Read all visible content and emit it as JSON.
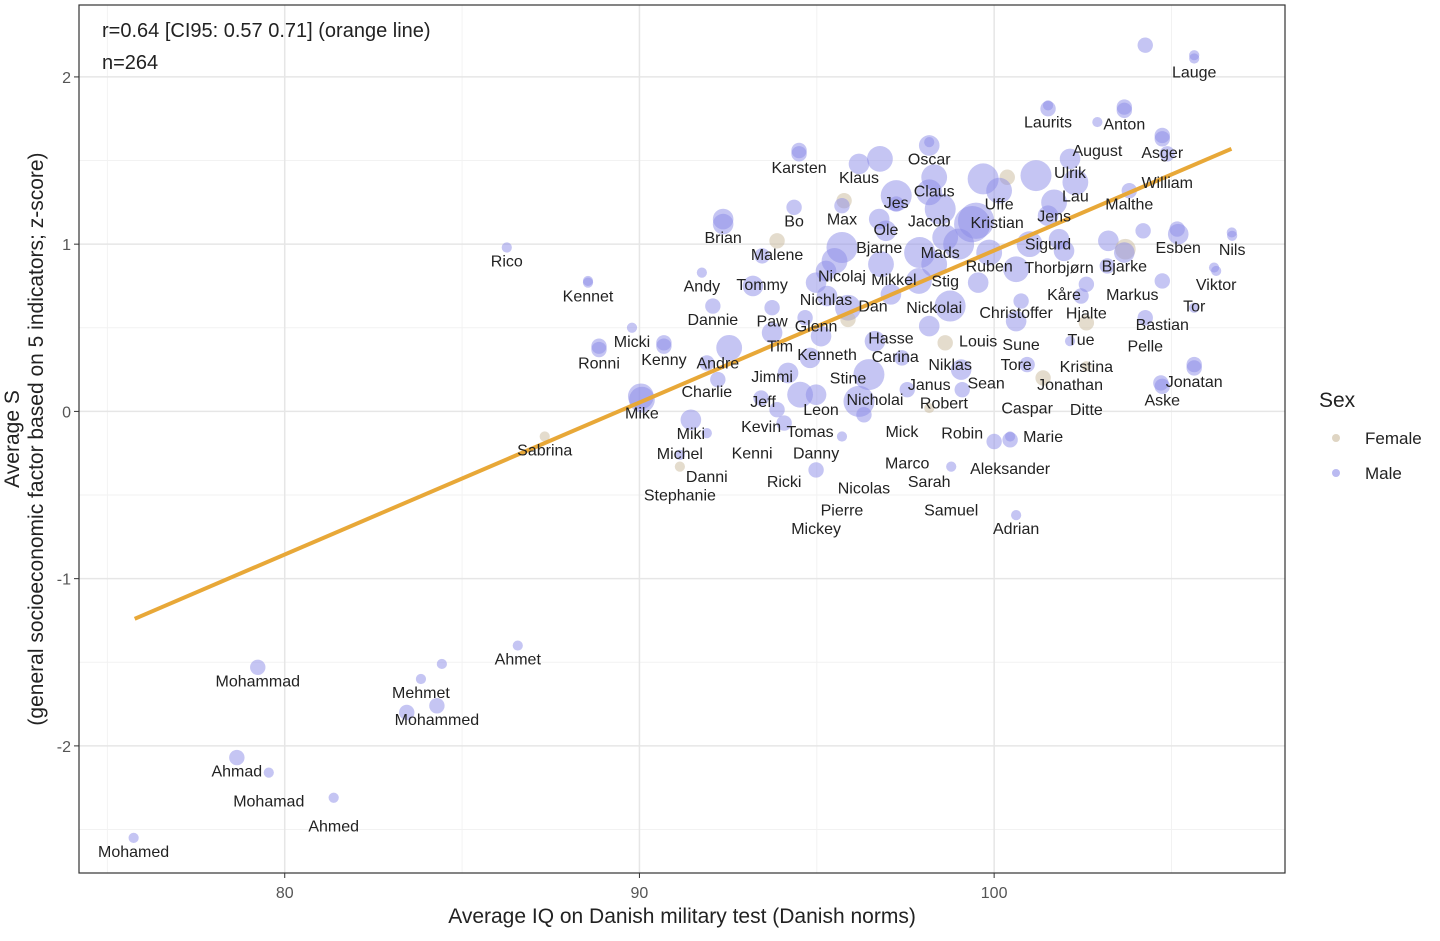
{
  "chart_data": {
    "type": "scatter",
    "xlabel": "Average IQ on Danish military test (Danish norms)",
    "ylabel": [
      "Average S",
      "(general socioeconomic factor based on 5 indicators; z-score)"
    ],
    "xlim": [
      74.2,
      108.2
    ],
    "ylim": [
      -2.76,
      2.43
    ],
    "x_ticks": [
      80,
      90,
      100
    ],
    "y_ticks": [
      -2,
      -1,
      0,
      1,
      2
    ],
    "grid": true,
    "annotations": [
      "r=0.64 [CI95: 0.57 0.71] (orange line)",
      "n=264"
    ],
    "regression_line": {
      "x": [
        75.77,
        106.69
      ],
      "y": [
        -1.24,
        1.57
      ],
      "color": "#e8a838"
    },
    "legend": {
      "title": "Sex",
      "position": "right",
      "entries": [
        {
          "label": "Female",
          "color": "#c9b99b"
        },
        {
          "label": "Male",
          "color": "#8c8ce8"
        }
      ]
    },
    "points": [
      {
        "name": "Lauge",
        "x": 105.64,
        "y": 2.11,
        "sex": "Male",
        "w": 1
      },
      {
        "name": "Laurits",
        "x": 101.52,
        "y": 1.81,
        "sex": "Male",
        "w": 2
      },
      {
        "name": "Anton",
        "x": 103.67,
        "y": 1.8,
        "sex": "Male",
        "w": 2
      },
      {
        "name": "August",
        "x": 102.91,
        "y": 1.73,
        "sex": "Male",
        "w": 1
      },
      {
        "name": "Asger",
        "x": 104.74,
        "y": 1.63,
        "sex": "Male",
        "w": 2
      },
      {
        "name": "William",
        "x": 104.88,
        "y": 1.54,
        "sex": "Male",
        "w": 2
      },
      {
        "name": "Ulrik",
        "x": 102.14,
        "y": 1.51,
        "sex": "Male",
        "w": 3
      },
      {
        "name": "Malthe",
        "x": 103.81,
        "y": 1.32,
        "sex": "Male",
        "w": 2
      },
      {
        "name": "Lau",
        "x": 102.29,
        "y": 1.37,
        "sex": "Male",
        "w": 4
      },
      {
        "name": "Jens",
        "x": 101.69,
        "y": 1.25,
        "sex": "Male",
        "w": 4
      },
      {
        "name": "Sigurd",
        "x": 101.52,
        "y": 1.17,
        "sex": "Male",
        "w": 3
      },
      {
        "name": "Oscar",
        "x": 98.17,
        "y": 1.59,
        "sex": "Male",
        "w": 3
      },
      {
        "name": "Karsten",
        "x": 94.5,
        "y": 1.54,
        "sex": "Male",
        "w": 2
      },
      {
        "name": "Klaus",
        "x": 96.19,
        "y": 1.48,
        "sex": "Male",
        "w": 3
      },
      {
        "name": "Claus",
        "x": 98.31,
        "y": 1.4,
        "sex": "Male",
        "w": 4
      },
      {
        "name": "Jacob",
        "x": 98.17,
        "y": 1.31,
        "sex": "Male",
        "w": 4
      },
      {
        "name": "Uffe",
        "x": 100.14,
        "y": 1.32,
        "sex": "Male",
        "w": 4
      },
      {
        "name": "Bo",
        "x": 94.36,
        "y": 1.22,
        "sex": "Male",
        "w": 2
      },
      {
        "name": "Max",
        "x": 95.71,
        "y": 1.23,
        "sex": "Male",
        "w": 2
      },
      {
        "name": "Jes",
        "x": 97.24,
        "y": 1.24,
        "sex": "Male",
        "w": 2
      },
      {
        "name": "Mads",
        "x": 98.48,
        "y": 1.21,
        "sex": "Male",
        "w": 5
      },
      {
        "name": "Bjarne",
        "x": 96.76,
        "y": 1.15,
        "sex": "Male",
        "w": 3
      },
      {
        "name": "Kristian",
        "x": 99.38,
        "y": 1.12,
        "sex": "Male",
        "w": 6
      },
      {
        "name": "Brian",
        "x": 92.36,
        "y": 1.12,
        "sex": "Male",
        "w": 3
      },
      {
        "name": "Ole",
        "x": 96.95,
        "y": 1.08,
        "sex": "Male",
        "w": 3
      },
      {
        "name": "Stig",
        "x": 98.62,
        "y": 1.04,
        "sex": "Male",
        "w": 4
      },
      {
        "name": "Thorbjørn",
        "x": 101.83,
        "y": 1.03,
        "sex": "Male",
        "w": 3
      },
      {
        "name": "Esben",
        "x": 105.19,
        "y": 1.06,
        "sex": "Male",
        "w": 3
      },
      {
        "name": "Nils",
        "x": 106.71,
        "y": 1.05,
        "sex": "Male",
        "w": 1
      },
      {
        "name": "Malene",
        "x": 93.88,
        "y": 1.02,
        "sex": "Female",
        "w": 2
      },
      {
        "name": "Nicolaj",
        "x": 95.71,
        "y": 0.98,
        "sex": "Male",
        "w": 5
      },
      {
        "name": "Rico",
        "x": 86.26,
        "y": 0.98,
        "sex": "Male",
        "w": 1
      },
      {
        "name": "Tommy",
        "x": 93.46,
        "y": 0.93,
        "sex": "Male",
        "w": 2
      },
      {
        "name": "Ruben",
        "x": 99.86,
        "y": 0.95,
        "sex": "Male",
        "w": 4
      },
      {
        "name": "Kåre",
        "x": 101.97,
        "y": 0.96,
        "sex": "Male",
        "w": 3
      },
      {
        "name": "Bjarke",
        "x": 103.67,
        "y": 0.95,
        "sex": "Male",
        "w": 3
      },
      {
        "name": "Markus",
        "x": 103.19,
        "y": 0.87,
        "sex": "Male",
        "w": 2
      },
      {
        "name": "Nickolai",
        "x": 98.31,
        "y": 0.88,
        "sex": "Male",
        "w": 4
      },
      {
        "name": "Christoffer",
        "x": 100.62,
        "y": 0.85,
        "sex": "Male",
        "w": 4
      },
      {
        "name": "Viktor",
        "x": 106.26,
        "y": 0.84,
        "sex": "Male",
        "w": 1
      },
      {
        "name": "Nichlas",
        "x": 95.26,
        "y": 0.84,
        "sex": "Male",
        "w": 3
      },
      {
        "name": "Andy",
        "x": 91.76,
        "y": 0.83,
        "sex": "Male",
        "w": 1
      },
      {
        "name": "Kennet",
        "x": 88.55,
        "y": 0.77,
        "sex": "Male",
        "w": 1
      },
      {
        "name": "Glenn",
        "x": 94.98,
        "y": 0.77,
        "sex": "Male",
        "w": 3
      },
      {
        "name": "Mikkel",
        "x": 97.88,
        "y": 0.78,
        "sex": "Male",
        "w": 4
      },
      {
        "name": "Louis",
        "x": 99.55,
        "y": 0.77,
        "sex": "Male",
        "w": 3
      },
      {
        "name": "Bastian",
        "x": 104.74,
        "y": 0.78,
        "sex": "Male",
        "w": 2
      },
      {
        "name": "Hjalte",
        "x": 102.6,
        "y": 0.76,
        "sex": "Male",
        "w": 2
      },
      {
        "name": "Tue",
        "x": 102.45,
        "y": 0.69,
        "sex": "Male",
        "w": 2
      },
      {
        "name": "Kenneth",
        "x": 95.29,
        "y": 0.69,
        "sex": "Male",
        "w": 3
      },
      {
        "name": "Hasse",
        "x": 97.09,
        "y": 0.7,
        "sex": "Male",
        "w": 3
      },
      {
        "name": "Dannie",
        "x": 92.07,
        "y": 0.63,
        "sex": "Male",
        "w": 2
      },
      {
        "name": "Paw",
        "x": 93.74,
        "y": 0.62,
        "sex": "Male",
        "w": 2
      },
      {
        "name": "Dan",
        "x": 95.88,
        "y": 0.62,
        "sex": "Male",
        "w": 4
      },
      {
        "name": "Niklas",
        "x": 98.76,
        "y": 0.63,
        "sex": "Male",
        "w": 5
      },
      {
        "name": "Sune",
        "x": 100.76,
        "y": 0.66,
        "sex": "Male",
        "w": 2
      },
      {
        "name": "Tor",
        "x": 105.64,
        "y": 0.62,
        "sex": "Male",
        "w": 1
      },
      {
        "name": "Tim",
        "x": 94.67,
        "y": 0.56,
        "sex": "Male",
        "w": 2
      },
      {
        "name": "Stine",
        "x": 95.88,
        "y": 0.55,
        "sex": "Female",
        "w": 2
      },
      {
        "name": "Tore",
        "x": 100.62,
        "y": 0.54,
        "sex": "Male",
        "w": 3
      },
      {
        "name": "Kristina",
        "x": 102.6,
        "y": 0.53,
        "sex": "Female",
        "w": 2
      },
      {
        "name": "Pelle",
        "x": 104.26,
        "y": 0.56,
        "sex": "Male",
        "w": 2
      },
      {
        "name": "Micki",
        "x": 89.79,
        "y": 0.5,
        "sex": "Male",
        "w": 1
      },
      {
        "name": "Janus",
        "x": 98.17,
        "y": 0.51,
        "sex": "Male",
        "w": 3
      },
      {
        "name": "Jimmi",
        "x": 93.74,
        "y": 0.47,
        "sex": "Male",
        "w": 3
      },
      {
        "name": "Leon",
        "x": 95.12,
        "y": 0.45,
        "sex": "Male",
        "w": 3
      },
      {
        "name": "Jonathan",
        "x": 102.14,
        "y": 0.42,
        "sex": "Male",
        "w": 1
      },
      {
        "name": "Nicholai",
        "x": 96.64,
        "y": 0.42,
        "sex": "Male",
        "w": 3
      },
      {
        "name": "Carina",
        "x": 98.62,
        "y": 0.41,
        "sex": "Female",
        "w": 2
      },
      {
        "name": "Kenny",
        "x": 90.69,
        "y": 0.39,
        "sex": "Male",
        "w": 2
      },
      {
        "name": "Ronni",
        "x": 88.86,
        "y": 0.37,
        "sex": "Male",
        "w": 2
      },
      {
        "name": "Mick",
        "x": 97.4,
        "y": 0.32,
        "sex": "Male",
        "w": 2
      },
      {
        "name": "Tomas",
        "x": 94.81,
        "y": 0.32,
        "sex": "Male",
        "w": 3
      },
      {
        "name": "Charlie",
        "x": 91.9,
        "y": 0.29,
        "sex": "Male",
        "w": 2
      },
      {
        "name": "Caspar",
        "x": 100.93,
        "y": 0.28,
        "sex": "Male",
        "w": 2
      },
      {
        "name": "Ditte",
        "x": 102.6,
        "y": 0.27,
        "sex": "Female",
        "w": 1
      },
      {
        "name": "Jonatan",
        "x": 105.64,
        "y": 0.26,
        "sex": "Male",
        "w": 2
      },
      {
        "name": "Jeff",
        "x": 94.19,
        "y": 0.23,
        "sex": "Male",
        "w": 3
      },
      {
        "name": "Robert",
        "x": 96.47,
        "y": 0.22,
        "sex": "Male",
        "w": 5
      },
      {
        "name": "Sean",
        "x": 99.07,
        "y": 0.25,
        "sex": "Male",
        "w": 3
      },
      {
        "name": "Marie",
        "x": 101.38,
        "y": 0.2,
        "sex": "Female",
        "w": 2
      },
      {
        "name": "Andre",
        "x": 92.21,
        "y": 0.19,
        "sex": "Male",
        "w": 2
      },
      {
        "name": "Aske",
        "x": 104.74,
        "y": 0.15,
        "sex": "Male",
        "w": 2
      },
      {
        "name": "Marco",
        "x": 97.55,
        "y": 0.13,
        "sex": "Male",
        "w": 2
      },
      {
        "name": "Robin",
        "x": 99.1,
        "y": 0.13,
        "sex": "Male",
        "w": 2
      },
      {
        "name": "Danny",
        "x": 94.98,
        "y": 0.1,
        "sex": "Male",
        "w": 3
      },
      {
        "name": "Mike",
        "x": 90.07,
        "y": 0.07,
        "sex": "Male",
        "w": 4
      },
      {
        "name": "Kevin",
        "x": 93.43,
        "y": 0.08,
        "sex": "Male",
        "w": 2
      },
      {
        "name": "Kenni",
        "x": 93.88,
        "y": 0.01,
        "sex": "Male",
        "w": 2
      },
      {
        "name": "Sarah",
        "x": 98.17,
        "y": 0.02,
        "sex": "Female",
        "w": 1
      },
      {
        "name": "Nicolas",
        "x": 96.33,
        "y": -0.02,
        "sex": "Male",
        "w": 2
      },
      {
        "name": "Ricki",
        "x": 94.08,
        "y": -0.07,
        "sex": "Male",
        "w": 2
      },
      {
        "name": "Miki",
        "x": 91.45,
        "y": -0.05,
        "sex": "Male",
        "w": 3
      },
      {
        "name": "Danni",
        "x": 91.9,
        "y": -0.13,
        "sex": "Male",
        "w": 1
      },
      {
        "name": "Pierre",
        "x": 95.71,
        "y": -0.15,
        "sex": "Male",
        "w": 1
      },
      {
        "name": "Sabrina",
        "x": 87.33,
        "y": -0.15,
        "sex": "Female",
        "w": 1
      },
      {
        "name": "Aleksander",
        "x": 100.45,
        "y": -0.17,
        "sex": "Male",
        "w": 2
      },
      {
        "name": "Michel",
        "x": 91.14,
        "y": -0.26,
        "sex": "Male",
        "w": 1
      },
      {
        "name": "Stephanie",
        "x": 91.14,
        "y": -0.33,
        "sex": "Female",
        "w": 1
      },
      {
        "name": "Mickey",
        "x": 94.98,
        "y": -0.35,
        "sex": "Male",
        "w": 2
      },
      {
        "name": "Samuel",
        "x": 98.79,
        "y": -0.33,
        "sex": "Male",
        "w": 1
      },
      {
        "name": "Adrian",
        "x": 100.62,
        "y": -0.62,
        "sex": "Male",
        "w": 1
      },
      {
        "name": "Ahmet",
        "x": 86.57,
        "y": -1.4,
        "sex": "Male",
        "w": 1
      },
      {
        "name": "Mohammad",
        "x": 79.24,
        "y": -1.53,
        "sex": "Male",
        "w": 2
      },
      {
        "name": "Mehmet",
        "x": 83.84,
        "y": -1.6,
        "sex": "Male",
        "w": 1
      },
      {
        "name": "Mohammed",
        "x": 84.29,
        "y": -1.76,
        "sex": "Male",
        "w": 2
      },
      {
        "name": "Ahmad",
        "x": 78.65,
        "y": -2.07,
        "sex": "Male",
        "w": 2
      },
      {
        "name": "Mohamad",
        "x": 79.55,
        "y": -2.16,
        "sex": "Male",
        "w": 1
      },
      {
        "name": "Ahmed",
        "x": 81.38,
        "y": -2.31,
        "sex": "Male",
        "w": 1
      },
      {
        "name": "Mohamed",
        "x": 75.74,
        "y": -2.55,
        "sex": "Male",
        "w": 1
      }
    ],
    "unlabeled_points": [
      {
        "x": 104.26,
        "y": 2.19,
        "sex": "Male",
        "w": 2
      },
      {
        "x": 105.64,
        "y": 2.13,
        "sex": "Male",
        "w": 1
      },
      {
        "x": 101.52,
        "y": 1.83,
        "sex": "Male",
        "w": 1
      },
      {
        "x": 103.67,
        "y": 1.82,
        "sex": "Male",
        "w": 2
      },
      {
        "x": 104.74,
        "y": 1.65,
        "sex": "Male",
        "w": 2
      },
      {
        "x": 101.18,
        "y": 1.41,
        "sex": "Male",
        "w": 5
      },
      {
        "x": 99.69,
        "y": 1.39,
        "sex": "Male",
        "w": 5
      },
      {
        "x": 96.78,
        "y": 1.51,
        "sex": "Male",
        "w": 4
      },
      {
        "x": 97.24,
        "y": 1.29,
        "sex": "Male",
        "w": 5
      },
      {
        "x": 104.2,
        "y": 1.08,
        "sex": "Male",
        "w": 2
      },
      {
        "x": 105.16,
        "y": 1.09,
        "sex": "Male",
        "w": 2
      },
      {
        "x": 103.22,
        "y": 1.02,
        "sex": "Male",
        "w": 3
      },
      {
        "x": 99.49,
        "y": 1.14,
        "sex": "Male",
        "w": 6
      },
      {
        "x": 96.81,
        "y": 0.88,
        "sex": "Male",
        "w": 4
      },
      {
        "x": 90.04,
        "y": 0.09,
        "sex": "Male",
        "w": 4
      },
      {
        "x": 92.53,
        "y": 0.38,
        "sex": "Male",
        "w": 4
      },
      {
        "x": 96.19,
        "y": 0.06,
        "sex": "Male",
        "w": 5
      },
      {
        "x": 94.53,
        "y": 0.1,
        "sex": "Male",
        "w": 4
      },
      {
        "x": 100.37,
        "y": 1.4,
        "sex": "Female",
        "w": 2
      },
      {
        "x": 95.77,
        "y": 1.26,
        "sex": "Female",
        "w": 2
      },
      {
        "x": 103.7,
        "y": 0.97,
        "sex": "Female",
        "w": 3
      },
      {
        "x": 88.86,
        "y": 0.39,
        "sex": "Male",
        "w": 2
      },
      {
        "x": 90.69,
        "y": 0.41,
        "sex": "Male",
        "w": 2
      },
      {
        "x": 88.55,
        "y": 0.78,
        "sex": "Male",
        "w": 1
      },
      {
        "x": 106.2,
        "y": 0.86,
        "sex": "Male",
        "w": 1
      },
      {
        "x": 106.7,
        "y": 1.07,
        "sex": "Male",
        "w": 1
      },
      {
        "x": 105.64,
        "y": 0.28,
        "sex": "Male",
        "w": 2
      },
      {
        "x": 104.7,
        "y": 0.17,
        "sex": "Male",
        "w": 2
      },
      {
        "x": 100.45,
        "y": -0.15,
        "sex": "Male",
        "w": 1
      },
      {
        "x": 100.0,
        "y": -0.18,
        "sex": "Male",
        "w": 2
      },
      {
        "x": 84.43,
        "y": -1.51,
        "sex": "Male",
        "w": 1
      },
      {
        "x": 83.44,
        "y": -1.8,
        "sex": "Male",
        "w": 2
      },
      {
        "x": 92.36,
        "y": 1.15,
        "sex": "Male",
        "w": 3
      },
      {
        "x": 94.5,
        "y": 1.56,
        "sex": "Male",
        "w": 2
      },
      {
        "x": 98.17,
        "y": 1.61,
        "sex": "Male",
        "w": 1
      },
      {
        "x": 97.9,
        "y": 0.95,
        "sex": "Male",
        "w": 5
      },
      {
        "x": 99.0,
        "y": 1.0,
        "sex": "Male",
        "w": 5
      },
      {
        "x": 101.0,
        "y": 1.0,
        "sex": "Male",
        "w": 4
      },
      {
        "x": 95.5,
        "y": 0.9,
        "sex": "Male",
        "w": 4
      },
      {
        "x": 93.2,
        "y": 0.75,
        "sex": "Male",
        "w": 3
      }
    ]
  }
}
